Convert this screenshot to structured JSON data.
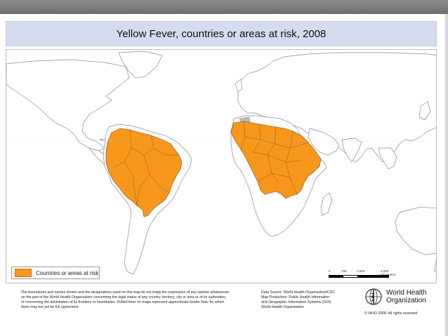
{
  "title": "Yellow Fever, countries or areas at risk, 2008",
  "legend": {
    "label": "Countries or areas at risk",
    "color": "#f7981d"
  },
  "scale": {
    "labels": [
      "0",
      "750",
      "1,500",
      "3,000 Kilometers"
    ]
  },
  "disclaimer": [
    "The boundaries and names shown and the designations used on this map do not imply the expression of any opinion whatsoever",
    "on the part of the World Health Organization concerning the legal status of any country, territory, city or area or of its authorities,",
    "or concerning the delimitation of its frontiers or boundaries. Dotted lines on maps represent approximate border lines for which",
    "there may not yet be full agreement."
  ],
  "data_source": [
    "Data Source: World Health Organization/CDC",
    "Map Production: Public Health Information",
    "and Geographic Information Systems (GIS)",
    "World Health Organization"
  ],
  "who": {
    "line1": "World Health",
    "line2": "Organization",
    "copyright": "© WHO 2008. All rights reserved"
  },
  "colors": {
    "risk": "#f7981d",
    "land": "#ffffff",
    "border": "#8a8a8a",
    "no_data": "#bdbdbd"
  }
}
